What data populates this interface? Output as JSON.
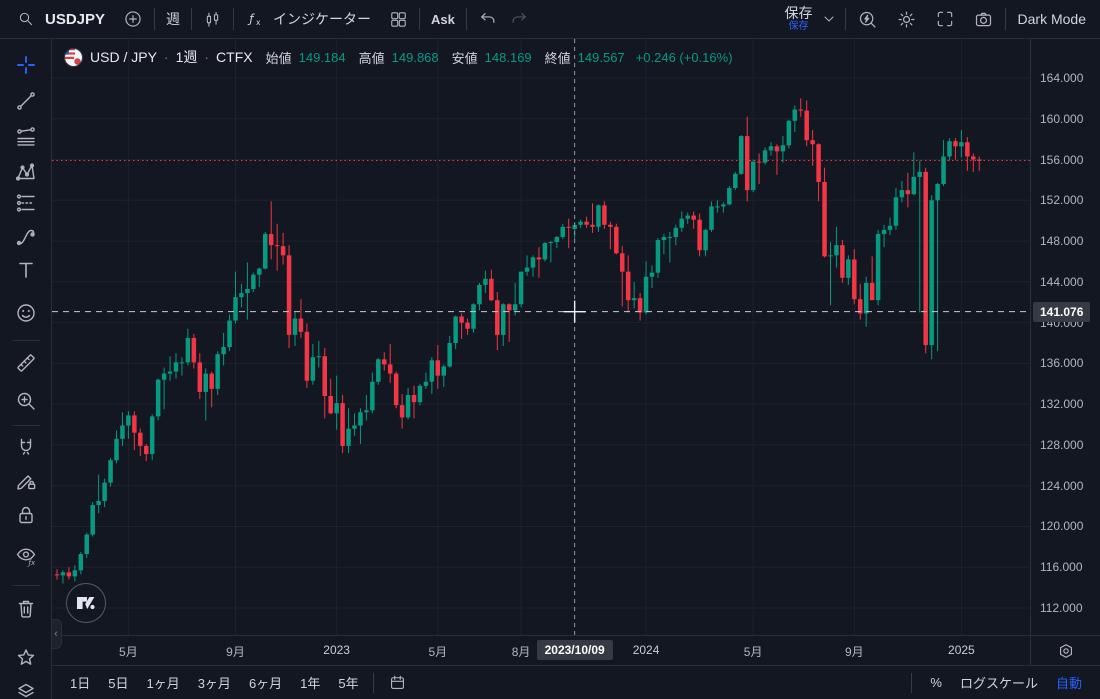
{
  "top_toolbar": {
    "symbol": "USDJPY",
    "interval": "週",
    "indicators_label": "インジケーター",
    "ask_label": "Ask",
    "save_label": "保存",
    "save_badge": "保存",
    "dark_mode_label": "Dark Mode"
  },
  "legend": {
    "symbol_title": "USD / JPY",
    "sep1": "·",
    "interval_text": "1週",
    "sep2": "·",
    "exchange": "CTFX",
    "ohlc": [
      {
        "label": "始値",
        "value": "149.184"
      },
      {
        "label": "高値",
        "value": "149.868"
      },
      {
        "label": "安値",
        "value": "148.169"
      },
      {
        "label": "終値",
        "value": "149.567"
      }
    ],
    "change_text": "+0.246 (+0.16%)"
  },
  "price_axis": {
    "labels": [
      "164.000",
      "160.000",
      "156.000",
      "152.000",
      "148.000",
      "144.000",
      "140.000",
      "136.000",
      "132.000",
      "128.000",
      "124.000",
      "120.000",
      "116.000",
      "112.000"
    ],
    "crosshair_label": "141.076"
  },
  "time_axis": {
    "labels": [
      {
        "text": "5月",
        "index": 12
      },
      {
        "text": "9月",
        "index": 30
      },
      {
        "text": "2023",
        "index": 47
      },
      {
        "text": "5月",
        "index": 64
      },
      {
        "text": "8月",
        "index": 78
      },
      {
        "text": "2024",
        "index": 99
      },
      {
        "text": "5月",
        "index": 117
      },
      {
        "text": "9月",
        "index": 134
      },
      {
        "text": "2025",
        "index": 152
      }
    ],
    "crosshair_label": "2023/10/09",
    "crosshair_index": 87
  },
  "bottom_toolbar": {
    "ranges": [
      "1日",
      "5日",
      "1ヶ月",
      "3ヶ月",
      "6ヶ月",
      "1年",
      "5年"
    ],
    "percent_label": "%",
    "log_scale_label": "ログスケール",
    "auto_label": "自動"
  },
  "colors": {
    "background": "#131722",
    "up": "#089981",
    "down": "#f23645",
    "grid": "#1e222d",
    "accent_blue": "#2962ff",
    "crosshair": "#9598a1",
    "axis_text": "#b2b5be",
    "last_price_line": "#f23645"
  },
  "chart_data": {
    "type": "candlestick",
    "title": "USD/JPY 1週 CTFX",
    "x_unit": "week",
    "x_start_week": "2022-02-07",
    "y_axis": {
      "min": 112,
      "max": 164,
      "tick_step": 4,
      "side": "right"
    },
    "grid": true,
    "last_price_line": 155.9,
    "crosshair": {
      "index": 87,
      "price": 141.076,
      "date": "2023/10/09"
    },
    "hovered_candle": {
      "date": "2023/10/09",
      "open": 149.184,
      "high": 149.868,
      "low": 148.169,
      "close": 149.567,
      "change": "+0.246",
      "change_pct": "+0.16%"
    },
    "candles": [
      [
        115.3,
        115.8,
        114.8,
        115.2
      ],
      [
        115.2,
        115.7,
        114.4,
        115.5
      ],
      [
        115.5,
        116.0,
        114.8,
        115.1
      ],
      [
        115.1,
        116.2,
        114.6,
        115.7
      ],
      [
        115.7,
        117.5,
        115.3,
        117.3
      ],
      [
        117.3,
        119.4,
        116.9,
        119.2
      ],
      [
        119.2,
        122.4,
        119.0,
        122.1
      ],
      [
        122.1,
        125.1,
        121.3,
        122.5
      ],
      [
        122.5,
        124.7,
        121.9,
        124.3
      ],
      [
        124.3,
        126.7,
        123.9,
        126.5
      ],
      [
        126.5,
        129.4,
        126.2,
        128.6
      ],
      [
        128.6,
        131.2,
        127.9,
        129.9
      ],
      [
        129.9,
        131.3,
        128.6,
        130.9
      ],
      [
        130.9,
        131.3,
        127.5,
        129.2
      ],
      [
        129.2,
        129.6,
        126.9,
        127.9
      ],
      [
        127.9,
        128.1,
        126.4,
        127.1
      ],
      [
        127.1,
        131.0,
        126.5,
        130.8
      ],
      [
        130.8,
        134.5,
        130.4,
        134.4
      ],
      [
        134.4,
        135.6,
        131.5,
        135.0
      ],
      [
        135.0,
        136.7,
        134.3,
        135.2
      ],
      [
        135.2,
        137.0,
        134.5,
        136.1
      ],
      [
        136.1,
        136.6,
        134.8,
        136.1
      ],
      [
        136.1,
        139.4,
        135.8,
        138.5
      ],
      [
        138.5,
        138.9,
        135.5,
        136.1
      ],
      [
        136.1,
        137.0,
        132.5,
        133.2
      ],
      [
        133.2,
        135.5,
        130.4,
        135.0
      ],
      [
        135.0,
        135.2,
        131.7,
        133.5
      ],
      [
        133.5,
        137.2,
        132.9,
        136.9
      ],
      [
        136.9,
        139.0,
        135.8,
        137.6
      ],
      [
        137.6,
        140.8,
        137.2,
        140.2
      ],
      [
        140.2,
        145.0,
        139.9,
        142.5
      ],
      [
        142.5,
        143.8,
        141.5,
        142.9
      ],
      [
        142.9,
        145.9,
        140.3,
        143.3
      ],
      [
        143.3,
        144.9,
        143.0,
        144.7
      ],
      [
        144.7,
        145.4,
        143.5,
        145.3
      ],
      [
        145.3,
        148.9,
        145.2,
        148.7
      ],
      [
        148.7,
        151.9,
        146.2,
        147.6
      ],
      [
        147.6,
        149.7,
        145.1,
        147.5
      ],
      [
        147.5,
        148.8,
        145.7,
        146.6
      ],
      [
        146.6,
        147.6,
        137.5,
        138.8
      ],
      [
        138.8,
        141.1,
        137.7,
        140.4
      ],
      [
        140.4,
        142.3,
        138.5,
        139.1
      ],
      [
        139.1,
        139.9,
        133.6,
        134.3
      ],
      [
        134.3,
        137.9,
        133.9,
        136.6
      ],
      [
        136.6,
        138.2,
        135.6,
        136.7
      ],
      [
        136.7,
        137.5,
        130.6,
        132.8
      ],
      [
        132.8,
        134.5,
        131.0,
        131.1
      ],
      [
        131.1,
        134.8,
        129.5,
        132.1
      ],
      [
        132.1,
        132.9,
        127.2,
        127.9
      ],
      [
        127.9,
        131.6,
        127.2,
        129.6
      ],
      [
        129.6,
        131.1,
        128.9,
        129.9
      ],
      [
        129.9,
        131.6,
        128.1,
        131.2
      ],
      [
        131.2,
        132.9,
        130.4,
        131.4
      ],
      [
        131.4,
        135.1,
        131.1,
        134.2
      ],
      [
        134.2,
        136.5,
        133.9,
        136.4
      ],
      [
        136.4,
        137.1,
        135.3,
        135.9
      ],
      [
        135.9,
        137.9,
        134.1,
        135.0
      ],
      [
        135.0,
        135.2,
        131.6,
        131.9
      ],
      [
        131.9,
        133.0,
        129.6,
        130.7
      ],
      [
        130.7,
        133.6,
        130.5,
        132.9
      ],
      [
        132.9,
        133.8,
        130.6,
        132.2
      ],
      [
        132.2,
        134.0,
        131.9,
        133.8
      ],
      [
        133.8,
        135.1,
        133.5,
        134.2
      ],
      [
        134.2,
        136.6,
        133.0,
        136.3
      ],
      [
        136.3,
        137.8,
        133.5,
        134.8
      ],
      [
        134.8,
        135.9,
        133.7,
        135.7
      ],
      [
        135.7,
        138.7,
        135.6,
        138.0
      ],
      [
        138.0,
        140.7,
        137.4,
        140.6
      ],
      [
        140.6,
        140.9,
        138.4,
        140.0
      ],
      [
        140.0,
        140.4,
        138.8,
        139.4
      ],
      [
        139.4,
        141.9,
        139.0,
        141.8
      ],
      [
        141.8,
        143.9,
        141.2,
        143.7
      ],
      [
        143.7,
        145.1,
        142.9,
        144.3
      ],
      [
        144.3,
        145.2,
        142.1,
        142.2
      ],
      [
        142.2,
        143.0,
        137.3,
        138.8
      ],
      [
        138.8,
        141.9,
        137.7,
        141.8
      ],
      [
        141.8,
        141.9,
        138.1,
        141.2
      ],
      [
        141.2,
        143.9,
        140.7,
        141.8
      ],
      [
        141.8,
        145.0,
        141.5,
        145.0
      ],
      [
        145.0,
        146.6,
        144.6,
        145.4
      ],
      [
        145.4,
        146.6,
        144.5,
        146.4
      ],
      [
        146.4,
        147.4,
        144.4,
        146.2
      ],
      [
        146.2,
        147.9,
        146.0,
        147.8
      ],
      [
        147.8,
        148.0,
        145.9,
        147.9
      ],
      [
        147.9,
        148.5,
        147.3,
        148.4
      ],
      [
        148.4,
        149.7,
        148.2,
        149.4
      ],
      [
        149.4,
        150.2,
        147.3,
        149.3
      ],
      [
        149.184,
        149.868,
        148.169,
        149.567
      ],
      [
        149.6,
        150.1,
        149.3,
        149.9
      ],
      [
        149.9,
        150.4,
        149.3,
        149.6
      ],
      [
        149.6,
        151.7,
        148.8,
        149.4
      ],
      [
        149.4,
        151.6,
        148.9,
        151.5
      ],
      [
        151.5,
        151.9,
        149.2,
        149.6
      ],
      [
        149.6,
        149.9,
        147.2,
        149.4
      ],
      [
        149.4,
        149.7,
        146.7,
        146.8
      ],
      [
        146.8,
        147.5,
        141.6,
        145.0
      ],
      [
        145.0,
        146.6,
        141.0,
        142.2
      ],
      [
        142.2,
        144.0,
        141.4,
        142.4
      ],
      [
        142.4,
        142.9,
        140.2,
        141.0
      ],
      [
        141.0,
        146.0,
        140.8,
        144.5
      ],
      [
        144.5,
        145.6,
        143.4,
        144.9
      ],
      [
        144.9,
        148.3,
        144.4,
        148.1
      ],
      [
        148.1,
        148.7,
        146.7,
        148.4
      ],
      [
        148.4,
        148.9,
        145.9,
        148.4
      ],
      [
        148.4,
        149.6,
        147.6,
        149.3
      ],
      [
        149.3,
        150.9,
        148.9,
        150.2
      ],
      [
        150.2,
        150.8,
        149.7,
        150.5
      ],
      [
        150.5,
        150.9,
        149.2,
        150.1
      ],
      [
        150.1,
        150.7,
        146.5,
        147.1
      ],
      [
        147.1,
        149.2,
        146.5,
        149.1
      ],
      [
        149.1,
        151.9,
        148.9,
        151.4
      ],
      [
        151.4,
        152.0,
        150.8,
        151.4
      ],
      [
        151.4,
        151.8,
        150.8,
        151.6
      ],
      [
        151.6,
        153.4,
        151.5,
        153.2
      ],
      [
        153.2,
        154.8,
        153.0,
        154.6
      ],
      [
        154.6,
        158.4,
        154.5,
        158.3
      ],
      [
        158.3,
        160.2,
        151.9,
        153.0
      ],
      [
        153.0,
        156.0,
        152.8,
        155.8
      ],
      [
        155.8,
        156.6,
        153.6,
        155.7
      ],
      [
        155.7,
        157.2,
        155.5,
        156.9
      ],
      [
        156.9,
        157.7,
        156.4,
        157.3
      ],
      [
        157.3,
        157.5,
        154.5,
        156.8
      ],
      [
        156.8,
        158.3,
        155.7,
        157.4
      ],
      [
        157.4,
        159.9,
        157.1,
        159.8
      ],
      [
        159.8,
        161.3,
        158.7,
        160.9
      ],
      [
        160.9,
        162.0,
        160.2,
        160.8
      ],
      [
        160.8,
        161.8,
        157.3,
        157.9
      ],
      [
        157.9,
        158.9,
        155.4,
        157.5
      ],
      [
        157.5,
        157.6,
        151.9,
        153.8
      ],
      [
        153.8,
        155.2,
        146.4,
        146.5
      ],
      [
        146.5,
        147.9,
        141.7,
        146.6
      ],
      [
        146.6,
        149.4,
        145.4,
        147.6
      ],
      [
        147.6,
        148.1,
        143.9,
        144.4
      ],
      [
        144.4,
        146.6,
        143.7,
        146.2
      ],
      [
        146.2,
        147.2,
        141.8,
        142.3
      ],
      [
        142.3,
        143.8,
        140.3,
        140.9
      ],
      [
        140.9,
        144.5,
        139.6,
        143.9
      ],
      [
        143.9,
        146.5,
        142.9,
        142.2
      ],
      [
        142.2,
        149.1,
        141.7,
        148.7
      ],
      [
        148.7,
        149.6,
        147.4,
        149.1
      ],
      [
        149.1,
        150.3,
        148.6,
        149.5
      ],
      [
        149.5,
        153.2,
        149.1,
        152.3
      ],
      [
        152.3,
        153.9,
        151.8,
        153.0
      ],
      [
        153.0,
        154.7,
        151.3,
        152.6
      ],
      [
        152.6,
        156.7,
        152.5,
        154.3
      ],
      [
        154.3,
        155.9,
        141.0,
        154.8
      ],
      [
        154.8,
        155.2,
        137.0,
        137.8
      ],
      [
        137.8,
        152.5,
        136.4,
        152.0
      ],
      [
        152.0,
        153.7,
        137.2,
        153.6
      ],
      [
        153.6,
        157.9,
        153.4,
        156.3
      ],
      [
        156.3,
        158.1,
        155.9,
        157.8
      ],
      [
        157.8,
        158.1,
        156.0,
        157.3
      ],
      [
        157.3,
        158.9,
        156.2,
        157.7
      ],
      [
        157.7,
        158.2,
        154.9,
        156.3
      ],
      [
        156.3,
        156.6,
        154.8,
        156.0
      ],
      [
        156.0,
        156.3,
        154.9,
        155.86
      ]
    ]
  }
}
